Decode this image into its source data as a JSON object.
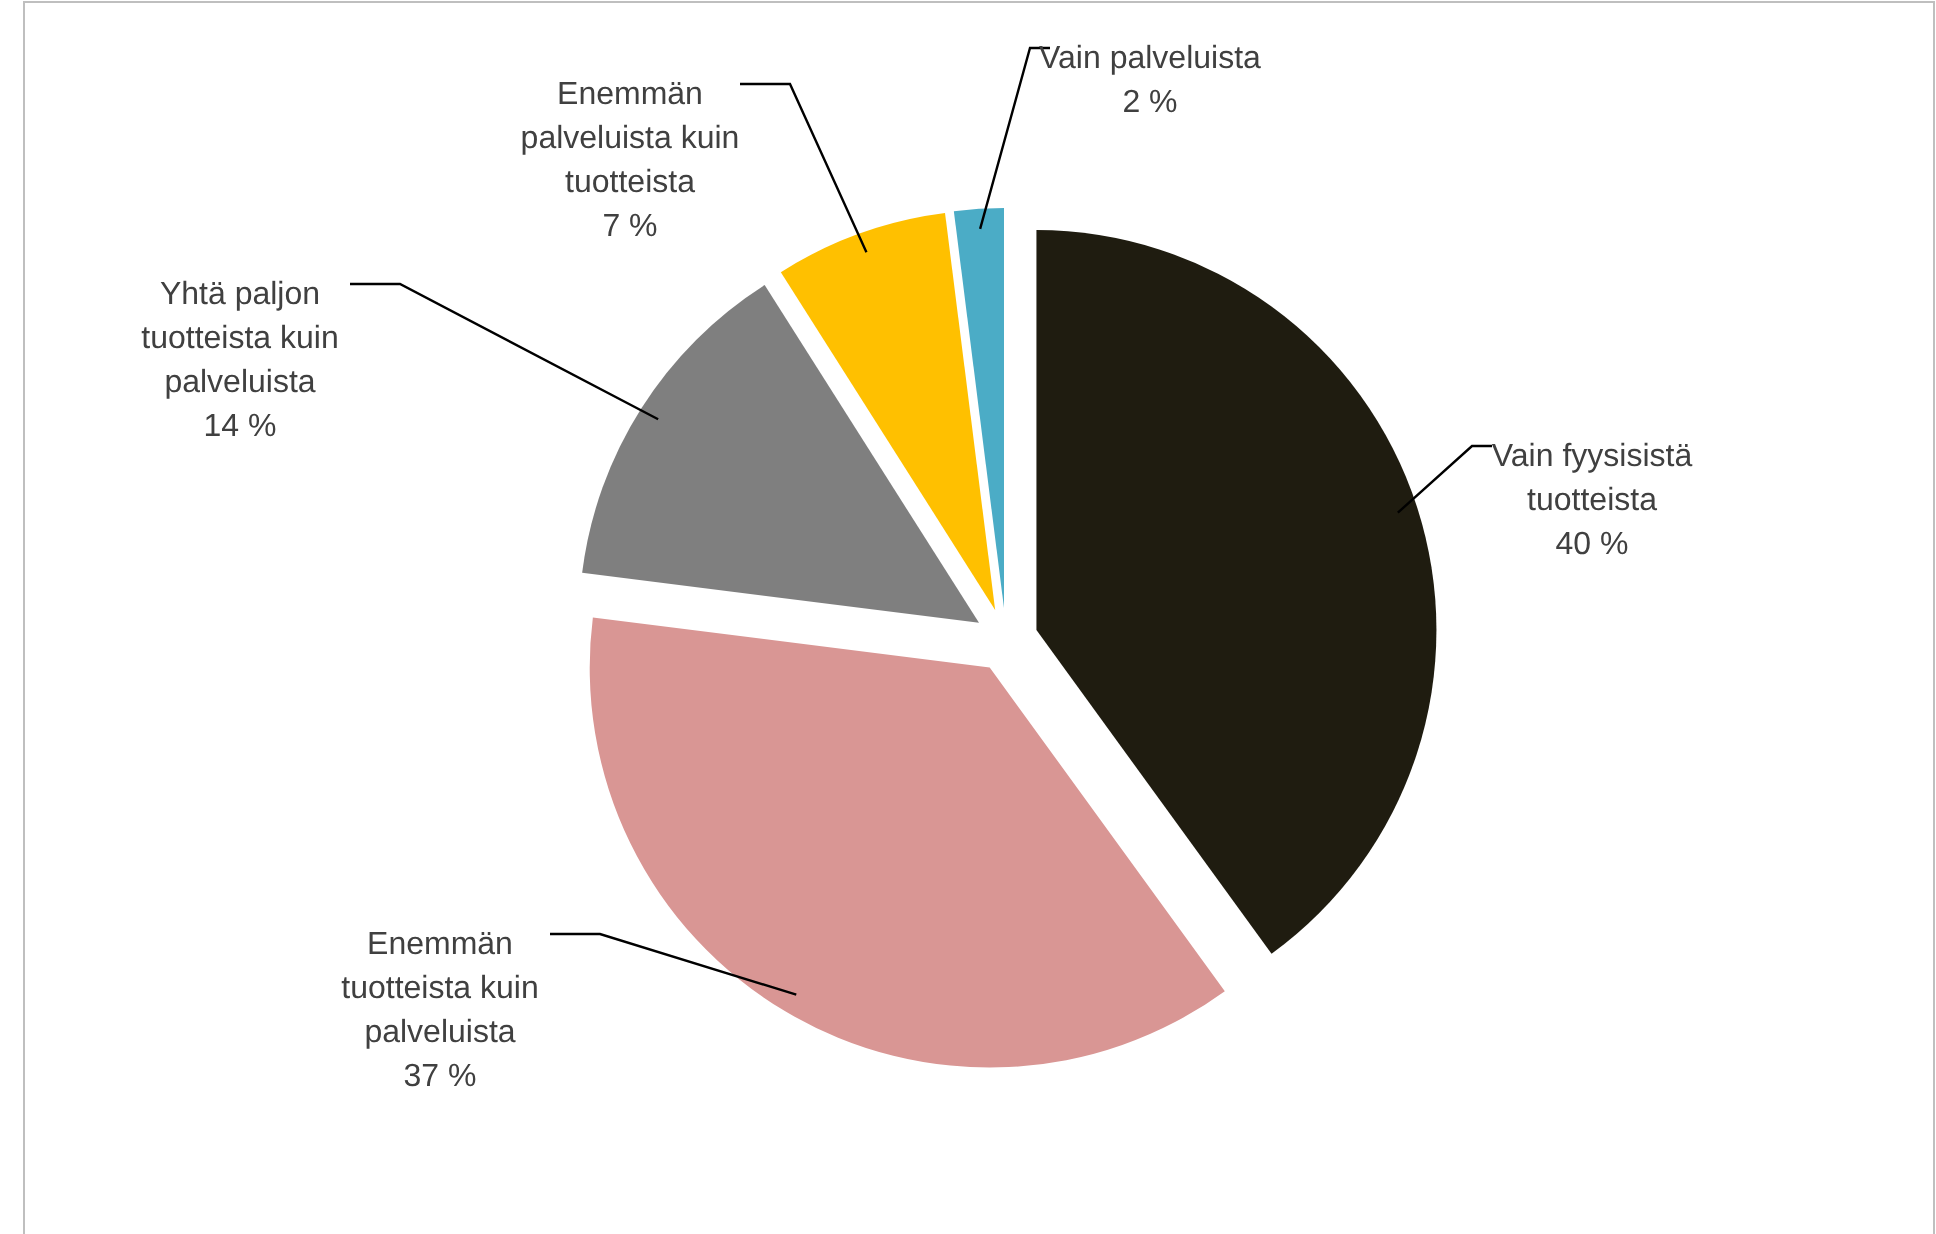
{
  "chart_data": {
    "type": "pie",
    "categories": [
      "Vain fyysisistä tuotteista",
      "Enemmän tuotteista kuin palveluista",
      "Yhtä paljon tuotteista kuin palveluista",
      "Enemmän palveluista kuin tuotteista",
      "Vain  palveluista"
    ],
    "values": [
      40,
      37,
      14,
      7,
      2
    ],
    "colors": [
      "#1f1c10",
      "#d99694",
      "#7f7f7f",
      "#ffc000",
      "#4bacc6"
    ],
    "value_labels": [
      "40 %",
      "37 %",
      "14 %",
      "7 %",
      "2 %"
    ]
  }
}
